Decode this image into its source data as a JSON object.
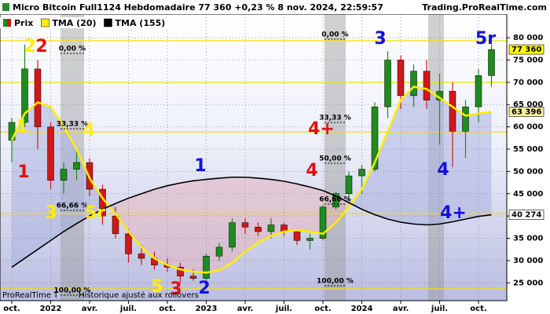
{
  "chart_data": {
    "type": "candlestick",
    "title": "Micro Bitcoin Full1124 Hebdomadaire 77 360 +0,23 % 8 nov. 2024, 22:59:57",
    "source": "Trading.ProRealTime.com",
    "footer": [
      "ProRealTime T",
      "Historique ajusté aux rollovers"
    ],
    "categories": [
      "oct.",
      null,
      null,
      "2022",
      null,
      null,
      "avr.",
      null,
      null,
      "juil.",
      null,
      null,
      "oct.",
      null,
      null,
      "2023",
      null,
      null,
      "avr.",
      null,
      null,
      "juil.",
      null,
      null,
      "oct.",
      null,
      null,
      "2024",
      null,
      null,
      "avr.",
      null,
      null,
      "juil.",
      null,
      null,
      "oct.",
      null
    ],
    "price": {
      "name": "Prix",
      "up_color": "#1e8c1e",
      "down_color": "#d01818",
      "open": [
        57000,
        61000,
        73000,
        60000,
        48000,
        50500,
        52000,
        46000,
        40000,
        36000,
        31500,
        30500,
        29000,
        28500,
        26500,
        26000,
        31000,
        33000,
        38500,
        37500,
        36500,
        38000,
        36500,
        34500,
        35000,
        42000,
        45000,
        49000,
        50500,
        64500,
        75000,
        67000,
        72500,
        66000,
        68000,
        59000,
        64500,
        71500
      ],
      "high": [
        62000,
        78500,
        75000,
        61000,
        52000,
        54500,
        53000,
        47000,
        42000,
        37000,
        33500,
        32000,
        30500,
        29500,
        28000,
        31500,
        34000,
        39500,
        39500,
        38500,
        39500,
        38500,
        37000,
        36000,
        42500,
        45500,
        50000,
        51500,
        65500,
        77000,
        76000,
        74000,
        75000,
        72000,
        70000,
        66000,
        73000,
        78500
      ],
      "low": [
        52000,
        60000,
        55000,
        46000,
        45000,
        48000,
        44500,
        38000,
        35000,
        29500,
        29000,
        28000,
        27500,
        25000,
        25500,
        25500,
        30000,
        32000,
        36000,
        35500,
        35000,
        35500,
        33500,
        32500,
        34500,
        41500,
        43500,
        45000,
        50000,
        62000,
        64000,
        64500,
        64000,
        56000,
        51000,
        53000,
        61000,
        69000
      ],
      "close": [
        61000,
        73000,
        60000,
        48000,
        50500,
        52000,
        46000,
        40000,
        36000,
        31500,
        30500,
        29000,
        28500,
        26500,
        26000,
        31000,
        33000,
        38500,
        37500,
        36500,
        38000,
        36500,
        34500,
        35000,
        42000,
        45000,
        49000,
        50500,
        64500,
        75000,
        67000,
        72500,
        66000,
        68000,
        59000,
        64500,
        71500,
        77360
      ],
      "last_label": "77 360",
      "label_color": "#ffff00"
    },
    "series": [
      {
        "name": "TMA (20)",
        "color": "#ffee00",
        "values": [
          57000,
          63000,
          65500,
          64500,
          60000,
          55000,
          48500,
          44000,
          40500,
          36500,
          33000,
          30500,
          29000,
          28000,
          27500,
          27300,
          27800,
          29500,
          32000,
          34000,
          35500,
          36500,
          36800,
          36500,
          36000,
          38500,
          42000,
          46000,
          52000,
          59000,
          66000,
          69000,
          68500,
          66500,
          64500,
          62500,
          63000,
          63396
        ],
        "last_label": "63 396",
        "label_color": "#f4f0a0"
      },
      {
        "name": "TMA (155)",
        "color": "#000000",
        "values": [
          28500,
          30500,
          32500,
          34500,
          36500,
          38300,
          40000,
          41500,
          42800,
          44000,
          45000,
          46000,
          46800,
          47400,
          47900,
          48200,
          48500,
          48700,
          48700,
          48500,
          48200,
          47800,
          47200,
          46500,
          45700,
          44500,
          43000,
          41500,
          40300,
          39300,
          38600,
          38200,
          38000,
          38200,
          38700,
          39300,
          39900,
          40274
        ],
        "last_label": "40 274",
        "label_color": "#ffffff"
      }
    ],
    "ylim": [
      21000,
      85300
    ],
    "yticks": [
      {
        "value": 25000,
        "label": "25 000"
      },
      {
        "value": 30000,
        "label": "30 000"
      },
      {
        "value": 35000,
        "label": "35 000"
      },
      {
        "value": 40000,
        "label": "40 000"
      },
      {
        "value": 45000,
        "label": "45 000"
      },
      {
        "value": 50000,
        "label": "50 000"
      },
      {
        "value": 55000,
        "label": "55 000"
      },
      {
        "value": 60000,
        "label": "60 000"
      },
      {
        "value": 65000,
        "label": "65 000"
      },
      {
        "value": 70000,
        "label": "70 000"
      },
      {
        "value": 75000,
        "label": "75 000"
      },
      {
        "value": 80000,
        "label": "80 000"
      }
    ],
    "grid": true,
    "fibonacci": [
      {
        "labels": [
          "0,00 %",
          "33,33 %",
          "66,66 %",
          "100,00 %"
        ]
      },
      {
        "labels": [
          "0,00 %",
          "33,33 %",
          "50,00 %",
          "66,66 %",
          "100,00 %"
        ]
      }
    ],
    "waves": [
      {
        "text": "2",
        "color": "#ffee00"
      },
      {
        "text": "2",
        "color": "#e01010"
      },
      {
        "text": "1",
        "color": "#ffee00"
      },
      {
        "text": "1",
        "color": "#e01010"
      },
      {
        "text": "4",
        "color": "#ffee00"
      },
      {
        "text": "3",
        "color": "#ffee00"
      },
      {
        "text": "5r",
        "color": "#ffee00"
      },
      {
        "text": "5",
        "color": "#ffee00"
      },
      {
        "text": "3",
        "color": "#e01010"
      },
      {
        "text": "2",
        "color": "#1010e0"
      },
      {
        "text": "1",
        "color": "#1010e0"
      },
      {
        "text": "4+",
        "color": "#e01010"
      },
      {
        "text": "4",
        "color": "#e01010"
      },
      {
        "text": "3",
        "color": "#1010e0"
      },
      {
        "text": "5r",
        "color": "#1010e0"
      },
      {
        "text": "4",
        "color": "#1010e0"
      },
      {
        "text": "4+",
        "color": "#1010e0"
      }
    ]
  }
}
